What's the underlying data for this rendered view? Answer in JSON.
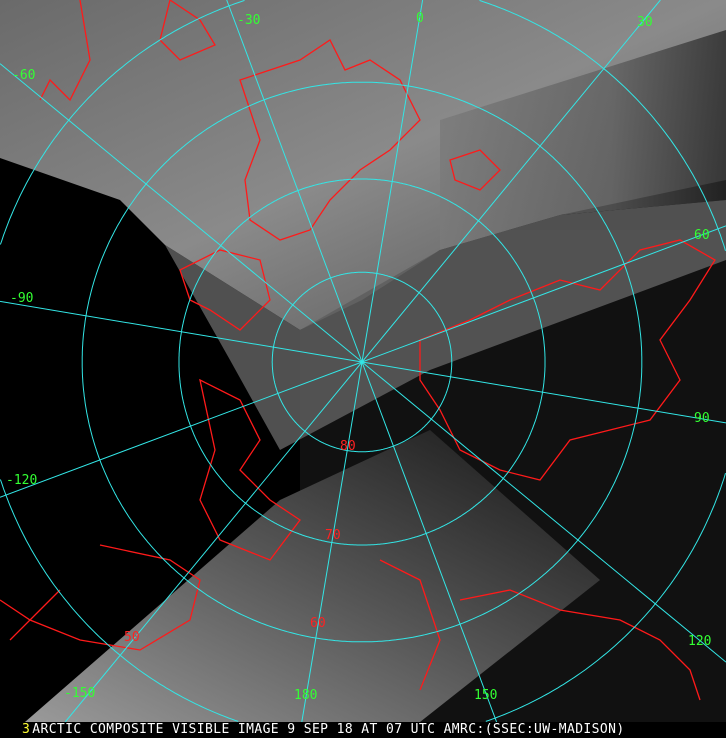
{
  "caption": {
    "frame_number": "3",
    "text": "ARCTIC COMPOSITE VISIBLE IMAGE 9 SEP 18 AT 07 UTC AMRC:(SSEC:UW-MADISON)"
  },
  "colors": {
    "graticule": "#33e6e6",
    "coastline": "#ff1a1a",
    "longitude_label": "#33ff33",
    "latitude_label": "#ff2222",
    "caption_number": "#ffff33",
    "caption_text": "#ffffff"
  },
  "longitude_labels": [
    "-30",
    "0",
    "30",
    "60",
    "90",
    "120",
    "150",
    "180",
    "-150",
    "-120",
    "-90",
    "-60"
  ],
  "latitude_labels": [
    "80",
    "70",
    "60",
    "50"
  ]
}
